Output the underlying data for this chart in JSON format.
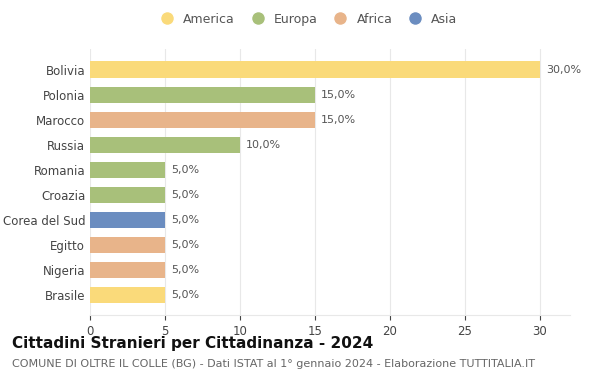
{
  "countries": [
    "Bolivia",
    "Polonia",
    "Marocco",
    "Russia",
    "Romania",
    "Croazia",
    "Corea del Sud",
    "Egitto",
    "Nigeria",
    "Brasile"
  ],
  "values": [
    30.0,
    15.0,
    15.0,
    10.0,
    5.0,
    5.0,
    5.0,
    5.0,
    5.0,
    5.0
  ],
  "continents": [
    "America",
    "Europa",
    "Africa",
    "Europa",
    "Europa",
    "Europa",
    "Asia",
    "Africa",
    "Africa",
    "America"
  ],
  "continent_colors": {
    "America": "#FADA7A",
    "Europa": "#A8C07A",
    "Africa": "#E8B48A",
    "Asia": "#6B8DC0"
  },
  "legend_order": [
    "America",
    "Europa",
    "Africa",
    "Asia"
  ],
  "title": "Cittadini Stranieri per Cittadinanza - 2024",
  "subtitle": "COMUNE DI OLTRE IL COLLE (BG) - Dati ISTAT al 1° gennaio 2024 - Elaborazione TUTTITALIA.IT",
  "xlim": [
    0,
    32
  ],
  "xticks": [
    0,
    5,
    10,
    15,
    20,
    25,
    30
  ],
  "bg_color": "#ffffff",
  "grid_color": "#e8e8e8",
  "bar_height": 0.65,
  "title_fontsize": 11,
  "subtitle_fontsize": 8,
  "label_fontsize": 8,
  "tick_fontsize": 8.5,
  "legend_fontsize": 9
}
